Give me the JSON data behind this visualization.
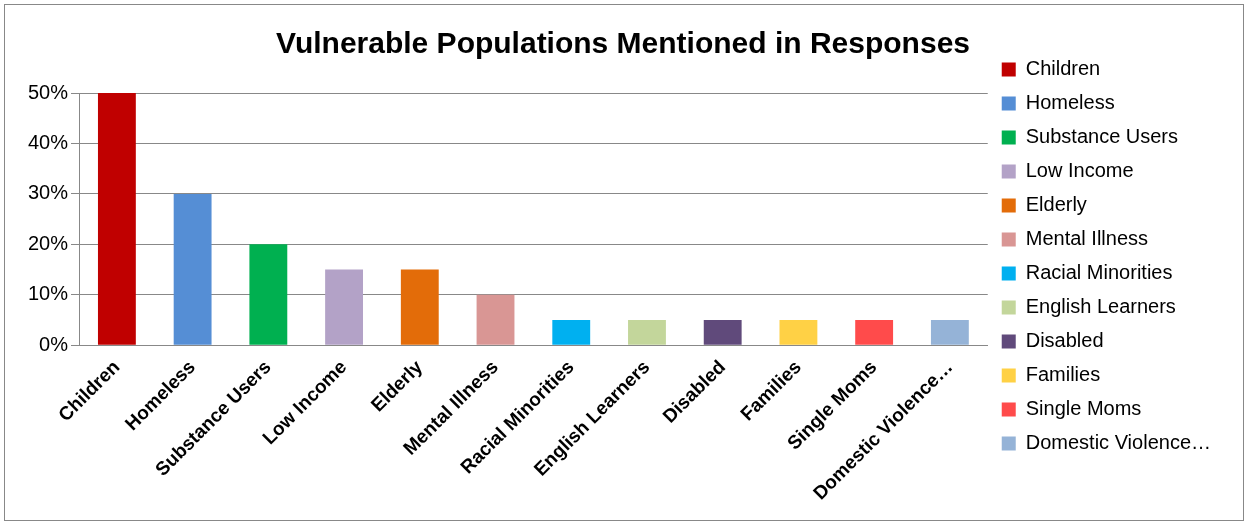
{
  "chart_data": {
    "type": "bar",
    "title": "Vulnerable Populations Mentioned in Responses",
    "categories": [
      "Children",
      "Homeless",
      "Substance Users",
      "Low Income",
      "Elderly",
      "Mental Illness",
      "Racial Minorities",
      "English Learners",
      "Disabled",
      "Families",
      "Single Moms",
      "Domestic Violence…"
    ],
    "series": [
      {
        "name": "Children",
        "color": "#c00000",
        "values": [
          50,
          null,
          null,
          null,
          null,
          null,
          null,
          null,
          null,
          null,
          null,
          null
        ]
      },
      {
        "name": "Homeless",
        "color": "#558ed5",
        "values": [
          null,
          30,
          null,
          null,
          null,
          null,
          null,
          null,
          null,
          null,
          null,
          null
        ]
      },
      {
        "name": "Substance Users",
        "color": "#00b050",
        "values": [
          null,
          null,
          20,
          null,
          null,
          null,
          null,
          null,
          null,
          null,
          null,
          null
        ]
      },
      {
        "name": "Low Income",
        "color": "#b3a2c7",
        "values": [
          null,
          null,
          null,
          15,
          null,
          null,
          null,
          null,
          null,
          null,
          null,
          null
        ]
      },
      {
        "name": "Elderly",
        "color": "#e36c09",
        "values": [
          null,
          null,
          null,
          null,
          15,
          null,
          null,
          null,
          null,
          null,
          null,
          null
        ]
      },
      {
        "name": "Mental Illness",
        "color": "#d99694",
        "values": [
          null,
          null,
          null,
          null,
          null,
          10,
          null,
          null,
          null,
          null,
          null,
          null
        ]
      },
      {
        "name": "Racial Minorities",
        "color": "#00b0f0",
        "values": [
          null,
          null,
          null,
          null,
          null,
          null,
          5,
          null,
          null,
          null,
          null,
          null
        ]
      },
      {
        "name": "English Learners",
        "color": "#c3d69b",
        "values": [
          null,
          null,
          null,
          null,
          null,
          null,
          null,
          5,
          null,
          null,
          null,
          null
        ]
      },
      {
        "name": "Disabled",
        "color": "#604a7b",
        "values": [
          null,
          null,
          null,
          null,
          null,
          null,
          null,
          null,
          5,
          null,
          null,
          null
        ]
      },
      {
        "name": "Families",
        "color": "#ffd145",
        "values": [
          null,
          null,
          null,
          null,
          null,
          null,
          null,
          null,
          null,
          5,
          null,
          null
        ]
      },
      {
        "name": "Single Moms",
        "color": "#ff4b4b",
        "values": [
          null,
          null,
          null,
          null,
          null,
          null,
          null,
          null,
          null,
          null,
          5,
          null
        ]
      },
      {
        "name": "Domestic Violence…",
        "color": "#95b3d7",
        "values": [
          null,
          null,
          null,
          null,
          null,
          null,
          null,
          null,
          null,
          null,
          null,
          5
        ]
      }
    ],
    "ylim": [
      0,
      50
    ],
    "yticks": [
      {
        "value": 0,
        "label": "0%"
      },
      {
        "value": 10,
        "label": "10%"
      },
      {
        "value": 20,
        "label": "20%"
      },
      {
        "value": 30,
        "label": "30%"
      },
      {
        "value": 40,
        "label": "40%"
      },
      {
        "value": 50,
        "label": "50%"
      }
    ],
    "grid": "y",
    "legend": "right"
  }
}
